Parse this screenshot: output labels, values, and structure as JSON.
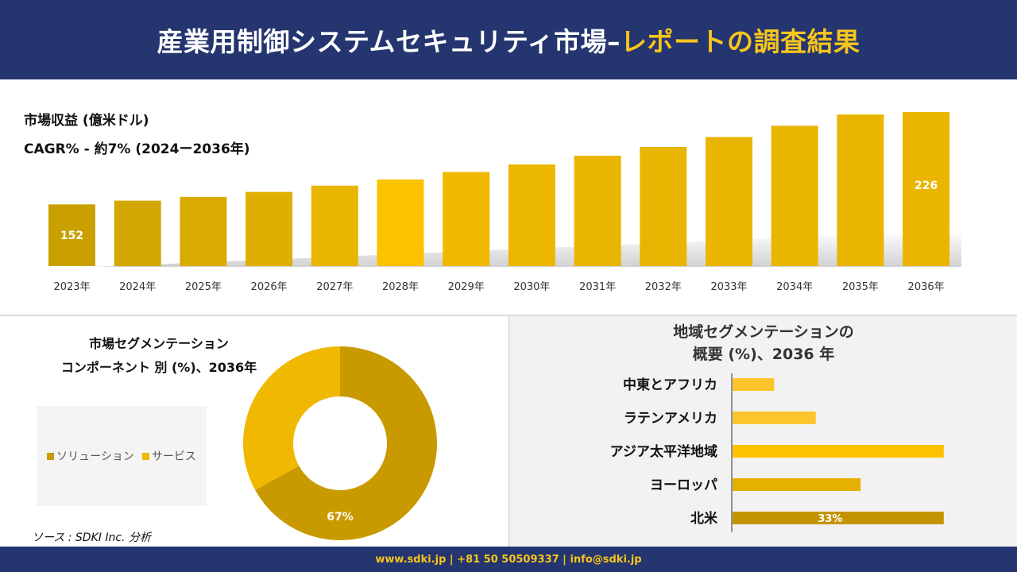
{
  "header": {
    "title_main": "産業用制御システムセキュリティ市場–",
    "title_accent": "レポートの調査結果"
  },
  "colors": {
    "navy": "#24356f",
    "gold": "#f7c51c",
    "bar_dark": "#c9a000",
    "bar_light": "#fcc200",
    "donut_solution": "#c99a00",
    "donut_service": "#f0b800"
  },
  "bar_panel": {
    "line1": "市場収益 (億米ドル)",
    "line2": "CAGR% - 約7% (2024ー2036年)"
  },
  "chart_data": [
    {
      "type": "bar",
      "categories": [
        "2023年",
        "2024年",
        "2025年",
        "2026年",
        "2027年",
        "2028年",
        "2029年",
        "2030年",
        "2031年",
        "2032年",
        "2033年",
        "2034年",
        "2035年",
        "2036年"
      ],
      "values": [
        152,
        155,
        158,
        162,
        167,
        172,
        178,
        184,
        191,
        198,
        206,
        215,
        224,
        226
      ],
      "data_labels": {
        "0": "152",
        "13": "226"
      },
      "colors": [
        "#c9a000",
        "#d3a700",
        "#d9ab00",
        "#deaf00",
        "#e8b600",
        "#fcc200",
        "#f0b900",
        "#ecb700",
        "#eab500",
        "#eab500",
        "#eab500",
        "#eab500",
        "#eab500",
        "#eab500"
      ]
    },
    {
      "type": "pie",
      "title": "市場セグメンテーション コンポーネント 別 (%)、2036年",
      "labels": [
        "ソリューション",
        "サービス"
      ],
      "values": [
        67,
        33
      ],
      "data_labels": [
        "67%",
        ""
      ],
      "colors": [
        "#c99a00",
        "#f0b800"
      ]
    },
    {
      "type": "bar",
      "orientation": "horizontal",
      "title": "地域セグメンテーションの 概要 (%)、2036 年",
      "categories": [
        "中東とアフリカ",
        "ラテンアメリカ",
        "アジア太平洋地域",
        "ヨーロッパ",
        "北米"
      ],
      "values": [
        6.5,
        13,
        33,
        20,
        33
      ],
      "data_labels": [
        "",
        "",
        "",
        "",
        "33%"
      ],
      "colors": [
        "#fcc52c",
        "#fcc52c",
        "#fcc200",
        "#e5b100",
        "#c49400"
      ]
    }
  ],
  "donut_panel": {
    "title_line1": "市場セグメンテーション",
    "title_line2": "コンポーネント 別 (%)、2036年",
    "legend": [
      {
        "label": "ソリューション",
        "color": "#c99a00"
      },
      {
        "label": "サービス",
        "color": "#f0b800"
      }
    ],
    "source": "ソース : SDKI Inc. 分析"
  },
  "region_panel": {
    "title_line1": "地域セグメンテーションの",
    "title_line2": "概要 (%)、2036 年"
  },
  "footer": {
    "text": "www.sdki.jp | +81 50 50509337 | info@sdki.jp"
  }
}
